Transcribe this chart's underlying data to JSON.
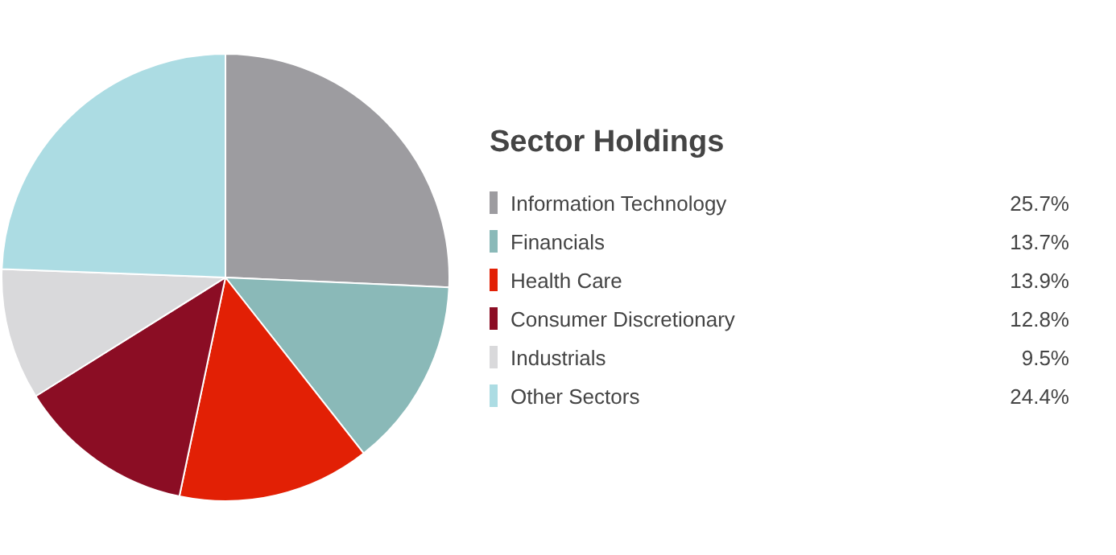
{
  "chart_data": {
    "type": "pie",
    "legend_title": "Sector Holdings",
    "categories": [
      "Information Technology",
      "Financials",
      "Health Care",
      "Consumer Discretionary",
      "Industrials",
      "Other Sectors"
    ],
    "values": [
      25.7,
      13.7,
      13.9,
      12.8,
      9.5,
      24.4
    ],
    "colors": [
      "#9d9ca0",
      "#8ab9b8",
      "#e22005",
      "#8b0d24",
      "#d9d9db",
      "#acdce3"
    ],
    "value_labels": [
      "25.7%",
      "13.7%",
      "13.9%",
      "12.8%",
      "9.5%",
      "24.4%"
    ],
    "legend": "right"
  }
}
